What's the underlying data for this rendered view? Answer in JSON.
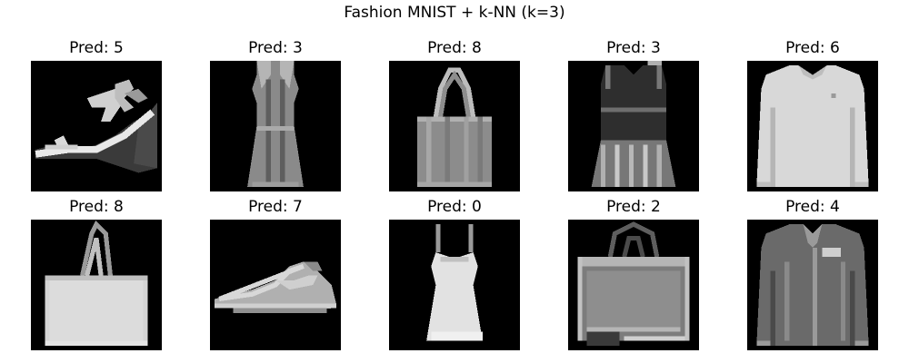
{
  "figure": {
    "title": "Fashion MNIST + k-NN (k=3)"
  },
  "panels": [
    {
      "title": "Pred: 5",
      "icon": "sandal"
    },
    {
      "title": "Pred: 3",
      "icon": "dress"
    },
    {
      "title": "Pred: 8",
      "icon": "bag"
    },
    {
      "title": "Pred: 3",
      "icon": "dress"
    },
    {
      "title": "Pred: 6",
      "icon": "shirt"
    },
    {
      "title": "Pred: 8",
      "icon": "bag"
    },
    {
      "title": "Pred: 7",
      "icon": "sneaker"
    },
    {
      "title": "Pred: 0",
      "icon": "top"
    },
    {
      "title": "Pred: 2",
      "icon": "bag"
    },
    {
      "title": "Pred: 4",
      "icon": "coat"
    }
  ]
}
